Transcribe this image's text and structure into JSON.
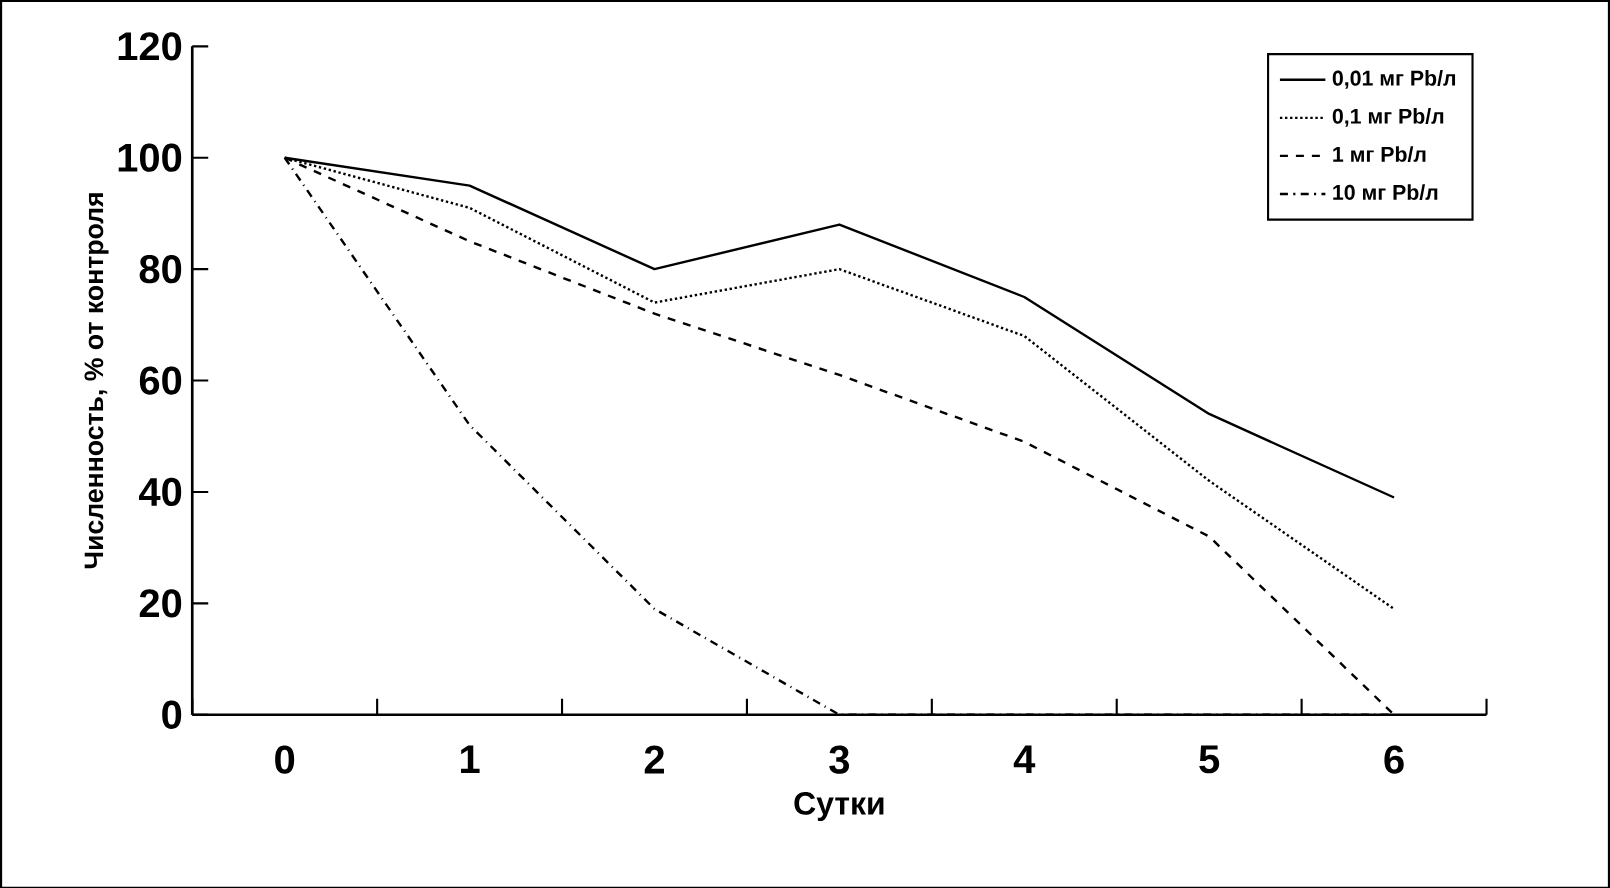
{
  "chart_data": {
    "type": "line",
    "xlabel": "Сутки",
    "ylabel": "Численность, % от контроля",
    "categories": [
      "0",
      "1",
      "2",
      "3",
      "4",
      "5",
      "6"
    ],
    "ylim": [
      0,
      120
    ],
    "yticks": [
      0,
      20,
      40,
      60,
      80,
      100,
      120
    ],
    "legend": "top right",
    "marker": "none",
    "grid": false,
    "series": [
      {
        "name": "0,01 мг Pb/л",
        "color": "#000000",
        "line_style": "solid",
        "values": [
          100,
          95,
          80,
          88,
          75,
          54,
          39
        ]
      },
      {
        "name": "0,1 мг Pb/л",
        "color": "#000000",
        "line_style": "dotted",
        "values": [
          100,
          91,
          74,
          80,
          68,
          42,
          19
        ]
      },
      {
        "name": "1 мг Pb/л",
        "color": "#000000",
        "line_style": "dashed",
        "values": [
          100,
          85,
          72,
          61,
          49,
          32,
          0
        ]
      },
      {
        "name": "10 мг Pb/л",
        "color": "#000000",
        "line_style": "dashdot",
        "values": [
          100,
          52,
          19,
          0,
          0,
          0,
          0
        ]
      }
    ]
  }
}
